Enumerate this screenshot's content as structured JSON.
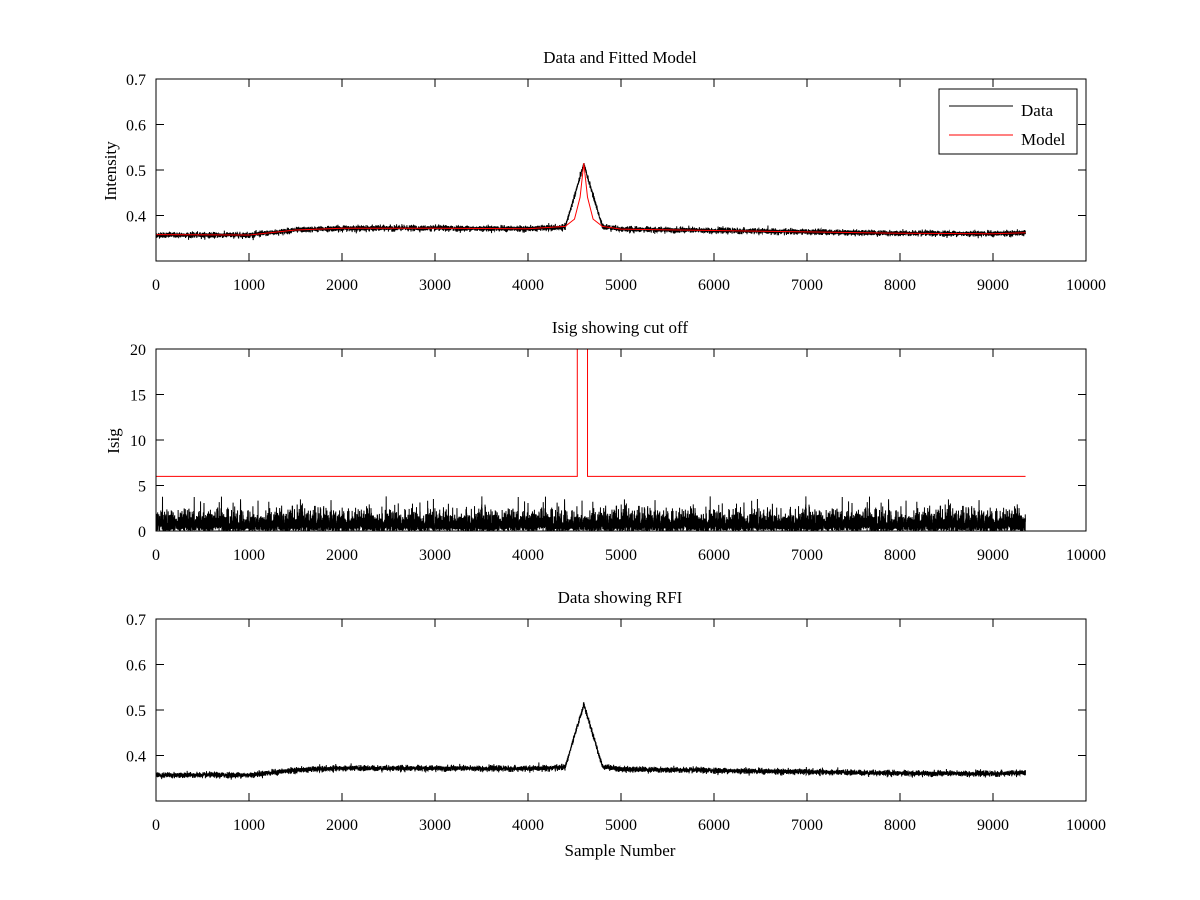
{
  "chart_data": [
    {
      "type": "line",
      "title": "Data and Fitted Model",
      "xlabel": "",
      "ylabel": "Intensity",
      "xlim": [
        0,
        10000
      ],
      "ylim": [
        0.3,
        0.7
      ],
      "xticks": [
        0,
        1000,
        2000,
        3000,
        4000,
        5000,
        6000,
        7000,
        8000,
        9000,
        10000
      ],
      "yticks": [
        0.4,
        0.5,
        0.6,
        0.7
      ],
      "grid": false,
      "legend": "top-right",
      "series": [
        {
          "name": "Data",
          "color": "#000000",
          "n_points": 9350,
          "baseline": [
            [
              0,
              0.357
            ],
            [
              1000,
              0.357
            ],
            [
              1500,
              0.368
            ],
            [
              2000,
              0.372
            ],
            [
              3000,
              0.372
            ],
            [
              4000,
              0.371
            ],
            [
              4400,
              0.374
            ],
            [
              4600,
              0.512
            ],
            [
              4800,
              0.376
            ],
            [
              5000,
              0.37
            ],
            [
              6000,
              0.367
            ],
            [
              7000,
              0.364
            ],
            [
              8000,
              0.361
            ],
            [
              9000,
              0.36
            ],
            [
              9350,
              0.362
            ]
          ],
          "noise": 0.006
        },
        {
          "name": "Model",
          "color": "#ff0000",
          "points": [
            [
              0,
              0.358
            ],
            [
              1000,
              0.357
            ],
            [
              1500,
              0.368
            ],
            [
              2000,
              0.372
            ],
            [
              3000,
              0.372
            ],
            [
              4000,
              0.371
            ],
            [
              4400,
              0.376
            ],
            [
              4500,
              0.392
            ],
            [
              4560,
              0.44
            ],
            [
              4600,
              0.515
            ],
            [
              4640,
              0.44
            ],
            [
              4700,
              0.392
            ],
            [
              4800,
              0.376
            ],
            [
              5000,
              0.37
            ],
            [
              6000,
              0.367
            ],
            [
              7000,
              0.364
            ],
            [
              8000,
              0.361
            ],
            [
              9000,
              0.36
            ],
            [
              9350,
              0.362
            ]
          ]
        }
      ]
    },
    {
      "type": "line",
      "title": "Isig showing cut off",
      "xlabel": "",
      "ylabel": "Isig",
      "xlim": [
        0,
        10000
      ],
      "ylim": [
        0,
        20
      ],
      "xticks": [
        0,
        1000,
        2000,
        3000,
        4000,
        5000,
        6000,
        7000,
        8000,
        9000,
        10000
      ],
      "yticks": [
        0,
        5,
        10,
        15,
        20
      ],
      "grid": false,
      "series": [
        {
          "color": "#000000",
          "n_points": 9350,
          "range": [
            0,
            3.8
          ],
          "typical_max": 2.2
        },
        {
          "color": "#ff0000",
          "points": [
            [
              0,
              6
            ],
            [
              4530,
              6
            ],
            [
              4530,
              20
            ],
            [
              4640,
              20
            ],
            [
              4640,
              6
            ],
            [
              9350,
              6
            ]
          ]
        }
      ]
    },
    {
      "type": "line",
      "title": "Data showing RFI",
      "xlabel": "Sample Number",
      "ylabel": "",
      "xlim": [
        0,
        10000
      ],
      "ylim": [
        0.3,
        0.7
      ],
      "xticks": [
        0,
        1000,
        2000,
        3000,
        4000,
        5000,
        6000,
        7000,
        8000,
        9000,
        10000
      ],
      "yticks": [
        0.4,
        0.5,
        0.6,
        0.7
      ],
      "grid": false,
      "series": [
        {
          "color": "#000000",
          "n_points": 9350,
          "baseline": [
            [
              0,
              0.357
            ],
            [
              1000,
              0.357
            ],
            [
              1500,
              0.368
            ],
            [
              2000,
              0.372
            ],
            [
              3000,
              0.372
            ],
            [
              4000,
              0.371
            ],
            [
              4400,
              0.374
            ],
            [
              4600,
              0.512
            ],
            [
              4800,
              0.376
            ],
            [
              5000,
              0.37
            ],
            [
              6000,
              0.367
            ],
            [
              7000,
              0.364
            ],
            [
              8000,
              0.361
            ],
            [
              9000,
              0.36
            ],
            [
              9350,
              0.362
            ]
          ],
          "noise": 0.006
        }
      ]
    }
  ]
}
